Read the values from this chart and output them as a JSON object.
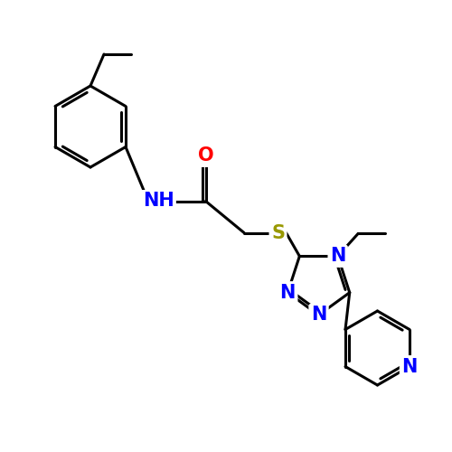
{
  "bg_color": "#ffffff",
  "bond_color": "#000000",
  "bond_width": 2.2,
  "atom_colors": {
    "N": "#0000ff",
    "O": "#ff0000",
    "S": "#999900",
    "C": "#000000"
  },
  "font_size_atom": 15,
  "figsize": [
    5.0,
    5.0
  ],
  "dpi": 100
}
